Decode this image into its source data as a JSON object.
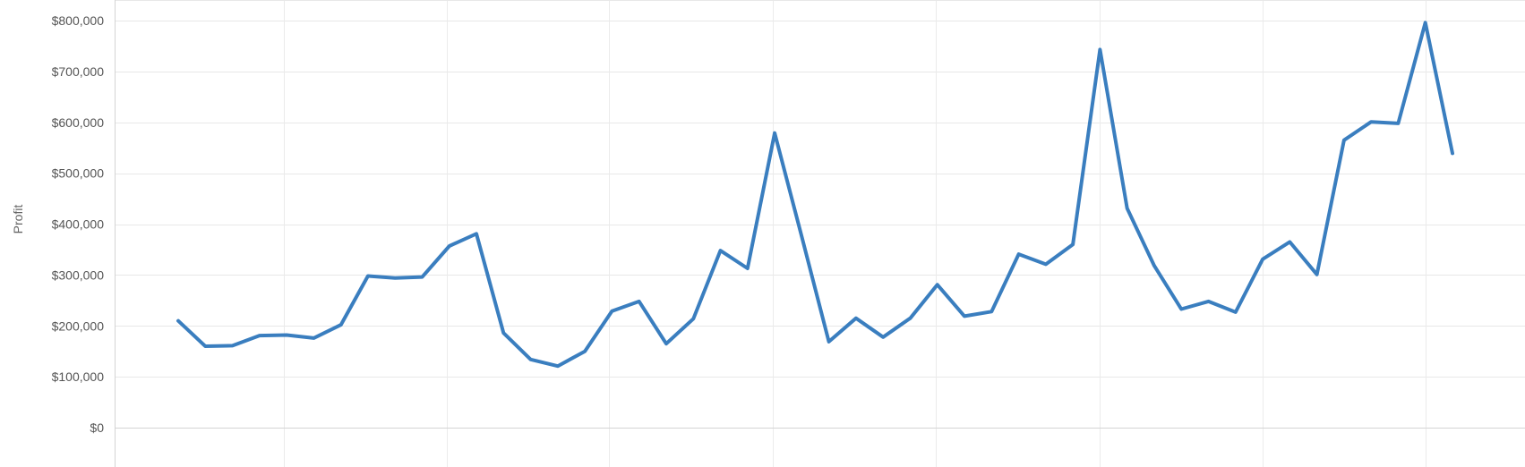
{
  "chart_data": {
    "type": "line",
    "title": "",
    "xlabel": "",
    "ylabel": "Profit",
    "ylim": [
      0,
      800000
    ],
    "y_ticks": [
      {
        "value": 0,
        "label": "$0"
      },
      {
        "value": 100000,
        "label": "$100,000"
      },
      {
        "value": 200000,
        "label": "$200,000"
      },
      {
        "value": 300000,
        "label": "$300,000"
      },
      {
        "value": 400000,
        "label": "$400,000"
      },
      {
        "value": 500000,
        "label": "$500,000"
      },
      {
        "value": 600000,
        "label": "$600,000"
      },
      {
        "value": 700000,
        "label": "$700,000"
      },
      {
        "value": 800000,
        "label": "$800,000"
      }
    ],
    "grid": true,
    "line_color": "#3a7ebf",
    "series": [
      {
        "values": [
          210000,
          160000,
          161000,
          181000,
          182000,
          176000,
          202000,
          298000,
          294000,
          296000,
          357000,
          381000,
          186000,
          134000,
          121000,
          150000,
          229000,
          248000,
          165000,
          214000,
          348000,
          313000,
          579000,
          375000,
          169000,
          215000,
          178000,
          215000,
          281000,
          219000,
          228000,
          341000,
          321000,
          360000,
          743000,
          431000,
          318000,
          233000,
          248000,
          227000,
          331000,
          365000,
          301000,
          565000,
          601000,
          598000,
          796000,
          539000
        ]
      }
    ]
  }
}
